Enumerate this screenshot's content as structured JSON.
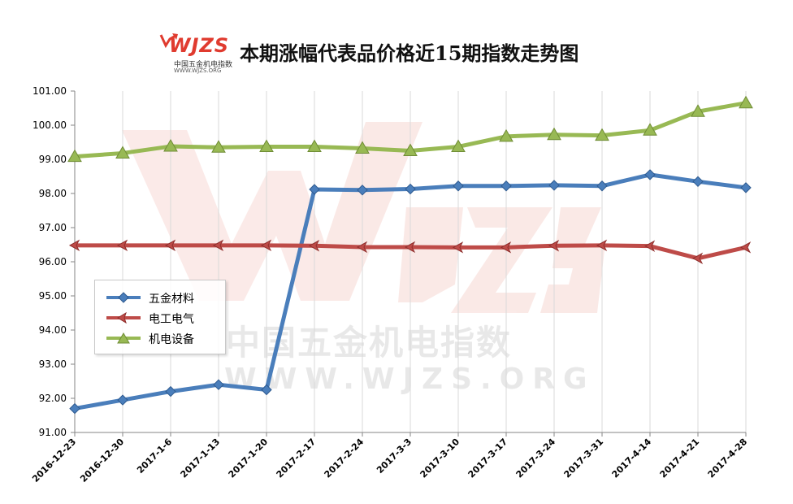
{
  "header": {
    "logo_text": "WJZS",
    "logo_subtitle": "中国五金机电指数",
    "logo_url": "WWW.WJZS.ORG",
    "title": "本期涨幅代表品价格近15期指数走势图"
  },
  "watermark": {
    "text_cn": "中国五金机电指数",
    "text_url": "WWW.WJZS.ORG"
  },
  "colors": {
    "wujin": "#4a7ebb",
    "diangong": "#be4b48",
    "jidian": "#98b954",
    "grid": "#d9d9d9"
  },
  "chart_data": {
    "type": "line",
    "title": "本期涨幅代表品价格近15期指数走势图",
    "xlabel": "",
    "ylabel": "",
    "ylim": [
      91.0,
      101.0
    ],
    "yticks": [
      "91.00",
      "92.00",
      "93.00",
      "94.00",
      "95.00",
      "96.00",
      "97.00",
      "98.00",
      "99.00",
      "100.00",
      "101.00"
    ],
    "categories": [
      "2016-12-23",
      "2016-12-30",
      "2017-1-6",
      "2017-1-13",
      "2017-1-20",
      "2017-2-17",
      "2017-2-24",
      "2017-3-3",
      "2017-3-10",
      "2017-3-17",
      "2017-3-24",
      "2017-3-31",
      "2017-4-14",
      "2017-4-21",
      "2017-4-28"
    ],
    "grid": "vertical",
    "legend_position": "left-middle",
    "series": [
      {
        "name": "五金材料",
        "marker": "diamond",
        "color": "#4a7ebb",
        "values": [
          91.7,
          91.95,
          92.2,
          92.4,
          92.25,
          98.12,
          98.1,
          98.13,
          98.22,
          98.22,
          98.24,
          98.22,
          98.55,
          98.35,
          98.17
        ]
      },
      {
        "name": "电工电气",
        "marker": "arrow",
        "color": "#be4b48",
        "values": [
          96.48,
          96.48,
          96.48,
          96.48,
          96.48,
          96.47,
          96.43,
          96.43,
          96.42,
          96.42,
          96.47,
          96.48,
          96.46,
          96.1,
          96.42
        ]
      },
      {
        "name": "机电设备",
        "marker": "triangle",
        "color": "#98b954",
        "values": [
          99.08,
          99.18,
          99.38,
          99.35,
          99.37,
          99.37,
          99.32,
          99.25,
          99.37,
          99.67,
          99.72,
          99.7,
          99.85,
          100.4,
          100.65
        ]
      }
    ]
  }
}
